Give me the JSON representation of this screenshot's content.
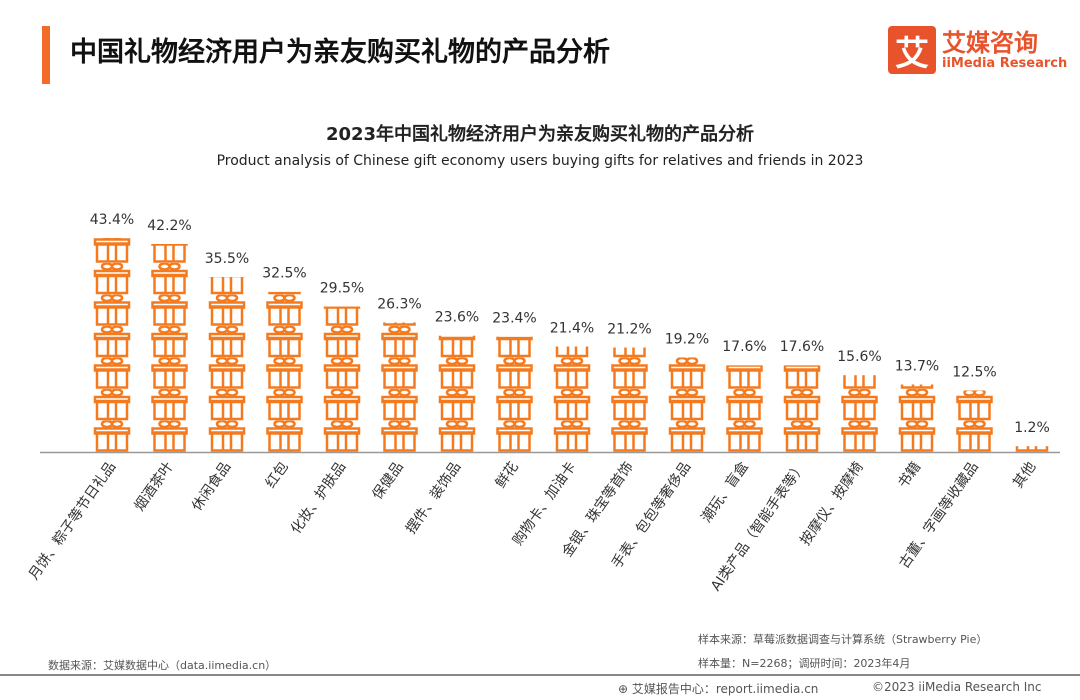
{
  "header": {
    "title": "中国礼物经济用户为亲友购买礼物的产品分析",
    "logo_mark": "艾",
    "logo_cn": "艾媒咨询",
    "logo_en": "iiMedia Research"
  },
  "chart_data": {
    "type": "bar",
    "title": "2023年中国礼物经济用户为亲友购买礼物的产品分析",
    "subtitle": "Product analysis of Chinese gift economy users buying gifts for relatives and friends in 2023",
    "categories": [
      "月饼、粽子等节日礼品",
      "烟酒茶叶",
      "休闲食品",
      "红包",
      "化妆、护肤品",
      "保健品",
      "摆件、装饰品",
      "鲜花",
      "购物卡、加油卡",
      "金银、珠宝等首饰",
      "手表、包包等奢侈品",
      "潮玩、盲盒",
      "AI类产品（智能手表等）",
      "按摩仪、按摩椅",
      "书籍",
      "古董、字画等收藏品",
      "其他"
    ],
    "values": [
      43.4,
      42.2,
      35.5,
      32.5,
      29.5,
      26.3,
      23.6,
      23.4,
      21.4,
      21.2,
      19.2,
      17.6,
      17.6,
      15.6,
      13.7,
      12.5,
      1.2
    ],
    "data_labels": [
      "43.4%",
      "42.2%",
      "35.5%",
      "32.5%",
      "29.5%",
      "26.3%",
      "23.6%",
      "23.4%",
      "21.4%",
      "21.2%",
      "19.2%",
      "17.6%",
      "17.6%",
      "15.6%",
      "13.7%",
      "12.5%",
      "1.2%"
    ],
    "unit": "%",
    "mark": "gift-box-pictogram",
    "color": "#f47a20",
    "ylim": [
      0,
      45
    ],
    "grid": false,
    "legend": "none"
  },
  "footer": {
    "data_source": "数据来源：艾媒数据中心（data.iimedia.cn）",
    "sample_source": "样本来源：草莓派数据调查与计算系统（Strawberry Pie）",
    "sample_size": "样本量：N=2268；调研时间：2023年4月",
    "report": "艾媒报告中心：report.iimedia.cn",
    "copyright": "©2023  iiMedia Research  Inc"
  }
}
